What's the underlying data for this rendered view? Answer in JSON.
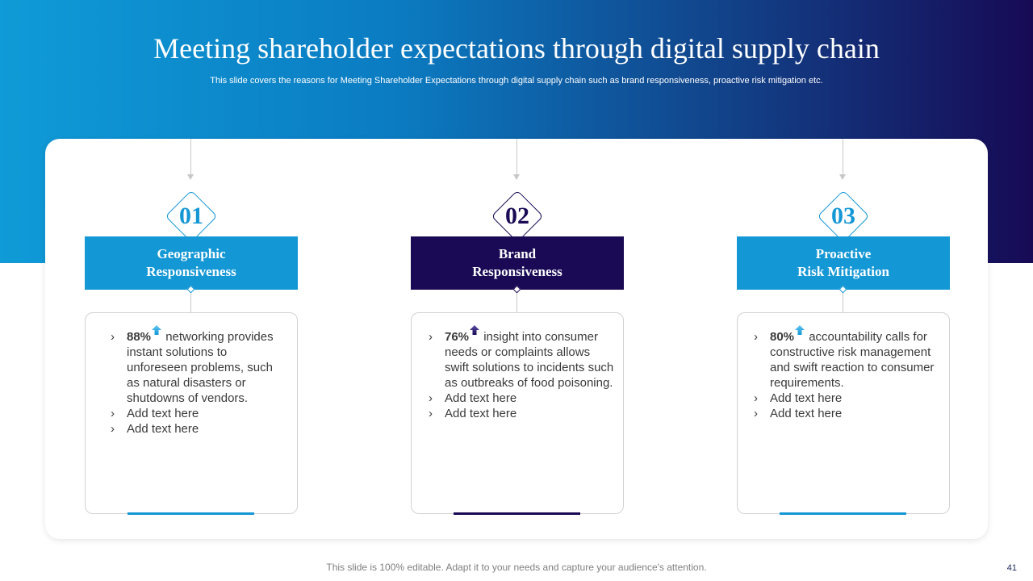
{
  "slide": {
    "title": "Meeting shareholder expectations through digital supply chain",
    "subtitle": "This slide covers the reasons for Meeting Shareholder Expectations through digital supply chain such as brand responsiveness, proactive risk mitigation etc.",
    "footer": "This slide is 100% editable. Adapt it to your needs and capture your audience's attention.",
    "page_number": "41"
  },
  "colors": {
    "light_blue": "#1497d5",
    "dark_navy": "#1a0a55"
  },
  "columns": [
    {
      "number": "01",
      "header_line1": "Geographic",
      "header_line2": "Responsiveness",
      "color": "#1497d5",
      "percent": "88%",
      "icon": "arrow-up-icon",
      "point1_text": " networking provides instant solutions to unforeseen problems, such as natural disasters or shutdowns of vendors.",
      "point2": "Add text here",
      "point3": "Add text here"
    },
    {
      "number": "02",
      "header_line1": "Brand",
      "header_line2": "Responsiveness",
      "color": "#1a0a55",
      "percent": "76%",
      "icon": "arrow-up-icon",
      "point1_text": " insight into consumer needs or complaints allows swift solutions to incidents such as outbreaks of food poisoning.",
      "point2": "Add text here",
      "point3": "Add text here"
    },
    {
      "number": "03",
      "header_line1": "Proactive",
      "header_line2": "Risk Mitigation",
      "color": "#1497d5",
      "percent": "80%",
      "icon": "arrow-up-icon",
      "point1_text": " accountability calls for constructive risk management and swift reaction to consumer requirements.",
      "point2": "Add text here",
      "point3": "Add text here"
    }
  ]
}
